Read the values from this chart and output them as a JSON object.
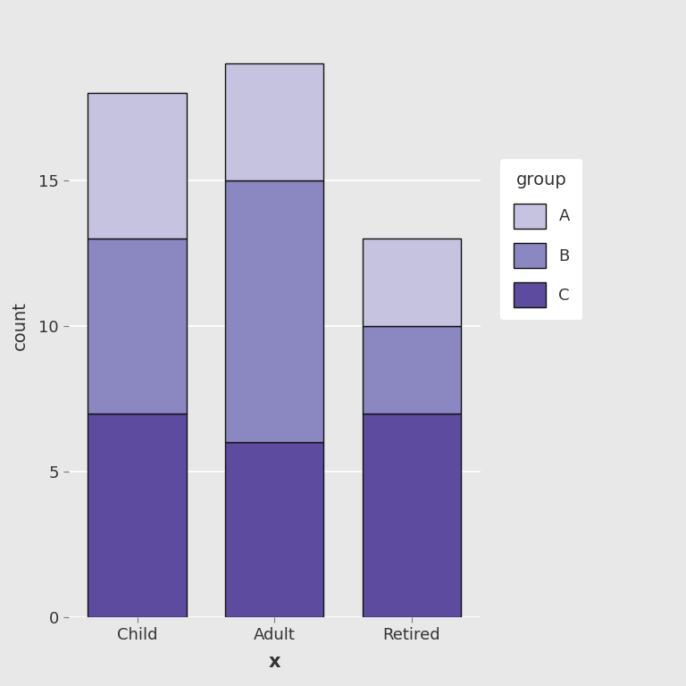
{
  "categories": [
    "Child",
    "Adult",
    "Retired"
  ],
  "C_values": [
    7,
    6,
    7
  ],
  "B_values": [
    6,
    9,
    3
  ],
  "A_values": [
    5,
    4,
    3
  ],
  "color_C": "#5c4b9e",
  "color_B": "#8b87c0",
  "color_A": "#c5c3e0",
  "xlabel": "x",
  "ylabel": "count",
  "ylim": [
    0,
    20
  ],
  "yticks": [
    0,
    5,
    10,
    15
  ],
  "background_color": "#e8e8e8",
  "panel_color": "#e8e8e8",
  "bar_edge_color": "#111111",
  "bar_width": 0.72,
  "legend_title": "group",
  "legend_labels": [
    "A",
    "B",
    "C"
  ],
  "legend_bg": "#ffffff",
  "grid_color": "#ffffff",
  "tick_color": "#7a7a7a"
}
